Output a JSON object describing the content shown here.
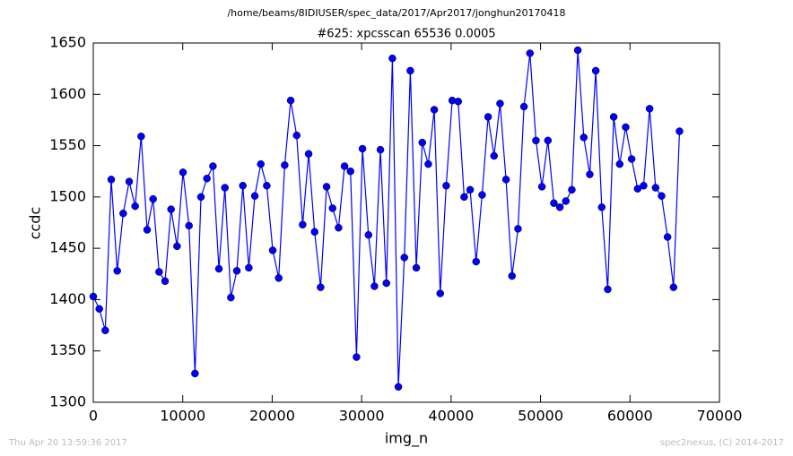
{
  "chart_data": {
    "type": "line",
    "suptitle": "/home/beams/8IDIUSER/spec_data/2017/Apr2017/jonghun20170418",
    "title": "#625: xpcsscan 65536 0.0005",
    "xlabel": "img_n",
    "ylabel": "ccdc",
    "footer_left": "Thu Apr 20 13:59:36 2017",
    "footer_right": "spec2nexus, (C) 2014-2017",
    "x": [
      0,
      669,
      1337,
      2006,
      2675,
      3344,
      4012,
      4681,
      5350,
      6019,
      6687,
      7356,
      8025,
      8693,
      9362,
      10031,
      10700,
      11368,
      12037,
      12706,
      13375,
      14043,
      14712,
      15381,
      16050,
      16718,
      17387,
      18056,
      18724,
      19393,
      20062,
      20731,
      21399,
      22068,
      22737,
      23406,
      24074,
      24743,
      25412,
      26080,
      26749,
      27418,
      28087,
      28755,
      29424,
      30093,
      30762,
      31430,
      32099,
      32768,
      33437,
      34105,
      34774,
      35443,
      36111,
      36780,
      37449,
      38118,
      38786,
      39455,
      40124,
      40793,
      41461,
      42130,
      42799,
      43468,
      44136,
      44805,
      45474,
      46142,
      46811,
      47480,
      48149,
      48817,
      49486,
      50155,
      50824,
      51492,
      52161,
      52830,
      53499,
      54167,
      54836,
      55505,
      56173,
      56842,
      57511,
      58180,
      58848,
      59517,
      60186,
      60855,
      61523,
      62192,
      62861,
      63530,
      64198,
      64867,
      65536
    ],
    "series": [
      {
        "name": "ccdc",
        "color": "#0000ff",
        "values": [
          1403,
          1391,
          1370,
          1517,
          1428,
          1484,
          1515,
          1491,
          1559,
          1468,
          1498,
          1427,
          1418,
          1488,
          1452,
          1524,
          1472,
          1328,
          1500,
          1518,
          1530,
          1430,
          1509,
          1402,
          1428,
          1511,
          1431,
          1501,
          1532,
          1511,
          1448,
          1421,
          1531,
          1594,
          1560,
          1473,
          1542,
          1466,
          1412,
          1510,
          1489,
          1470,
          1530,
          1525,
          1344,
          1547,
          1463,
          1413,
          1546,
          1416,
          1635,
          1315,
          1441,
          1623,
          1431,
          1553,
          1532,
          1585,
          1406,
          1511,
          1594,
          1593,
          1500,
          1507,
          1437,
          1502,
          1578,
          1540,
          1591,
          1517,
          1423,
          1469,
          1588,
          1640,
          1555,
          1510,
          1555,
          1494,
          1490,
          1496,
          1507,
          1643,
          1558,
          1522,
          1623,
          1490,
          1410,
          1578,
          1532,
          1568,
          1537,
          1508,
          1511,
          1586,
          1509,
          1501,
          1461,
          1412,
          1564
        ]
      }
    ],
    "xlim": [
      0,
      70000
    ],
    "xticks": [
      0,
      10000,
      20000,
      30000,
      40000,
      50000,
      60000,
      70000
    ],
    "ylim": [
      1300,
      1650
    ],
    "yticks": [
      1300,
      1350,
      1400,
      1450,
      1500,
      1550,
      1600,
      1650
    ],
    "grid": false
  }
}
